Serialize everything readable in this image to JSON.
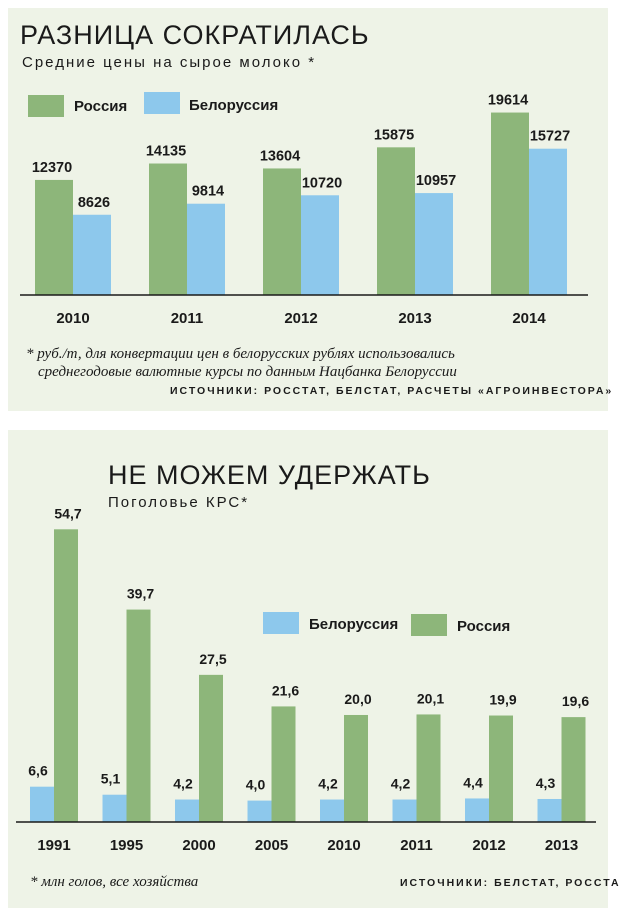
{
  "colors": {
    "russia": "#8db67a",
    "belarus": "#8dc8ec",
    "axis": "#1a1a1a"
  },
  "top_panel": {
    "title": "РАЗНИЦА СОКРАТИЛАСЬ",
    "subtitle": "Средние цены на сырое молоко *",
    "legend": {
      "russia": "Россия",
      "belarus": "Белоруссия"
    },
    "footnote_line1": "*  руб./т, для конвертации цен в белорусских рублях использовались",
    "footnote_line2": "среднегодовые валютные курсы по данным Нацбанка Белоруссии",
    "sources": "ИСТОЧНИКИ: РОССТАТ, БЕЛСТАТ, РАСЧЕТЫ «АГРОИНВЕСТОРА»"
  },
  "bottom_panel": {
    "title": "НЕ МОЖЕМ УДЕРЖАТЬ",
    "subtitle": "Поголовье КРС*",
    "legend": {
      "belarus": "Белоруссия",
      "russia": "Россия"
    },
    "footnote": "*  млн голов, все хозяйства",
    "sources": "ИСТОЧНИКИ: БЕЛСТАТ, РОССТАТ"
  },
  "chart_data": [
    {
      "type": "bar",
      "categories": [
        "2010",
        "2011",
        "2012",
        "2013",
        "2014"
      ],
      "series": [
        {
          "name": "Россия",
          "values": [
            12370,
            14135,
            13604,
            15875,
            19614
          ],
          "labels": [
            "12370",
            "14135",
            "13604",
            "15875",
            "19614"
          ]
        },
        {
          "name": "Белоруссия",
          "values": [
            8626,
            9814,
            10720,
            10957,
            15727
          ],
          "labels": [
            "8626",
            "9814",
            "10720",
            "10957",
            "15727"
          ]
        }
      ],
      "ylim": [
        0,
        21500
      ]
    },
    {
      "type": "bar",
      "categories": [
        "1991",
        "1995",
        "2000",
        "2005",
        "2010",
        "2011",
        "2012",
        "2013"
      ],
      "series": [
        {
          "name": "Белоруссия",
          "values": [
            6.6,
            5.1,
            4.2,
            4.0,
            4.2,
            4.2,
            4.4,
            4.3
          ],
          "labels": [
            "6,6",
            "5,1",
            "4,2",
            "4,0",
            "4,2",
            "4,2",
            "4,4",
            "4,3"
          ]
        },
        {
          "name": "Россия",
          "values": [
            54.7,
            39.7,
            27.5,
            21.6,
            20.0,
            20.1,
            19.9,
            19.6
          ],
          "labels": [
            "54,7",
            "39,7",
            "27,5",
            "21,6",
            "20,0",
            "20,1",
            "19,9",
            "19,6"
          ]
        }
      ],
      "ylim": [
        0,
        57
      ]
    }
  ]
}
